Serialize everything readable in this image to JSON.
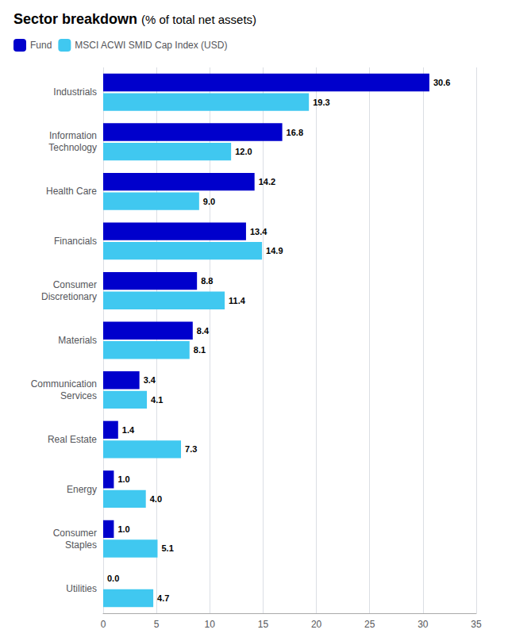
{
  "chart_data": {
    "type": "bar",
    "orientation": "horizontal",
    "title": "Sector breakdown",
    "subtitle": "(% of total net assets)",
    "categories": [
      "Industrials",
      "Information\nTechnology",
      "Health Care",
      "Financials",
      "Consumer\nDiscretionary",
      "Materials",
      "Communication\nServices",
      "Real Estate",
      "Energy",
      "Consumer\nStaples",
      "Utilities"
    ],
    "series": [
      {
        "name": "Fund",
        "color": "#0000CC",
        "values": [
          30.6,
          16.8,
          14.2,
          13.4,
          8.8,
          8.4,
          3.4,
          1.4,
          1.0,
          1.0,
          0.0
        ],
        "value_labels": [
          "30.6",
          "16.8",
          "14.2",
          "13.4",
          "8.8",
          "8.4",
          "3.4",
          "1.4",
          "1.0",
          "1.0",
          "0.0"
        ]
      },
      {
        "name": "MSCI ACWI SMID Cap Index (USD)",
        "color": "#40C8F0",
        "values": [
          19.3,
          12.0,
          9.0,
          14.9,
          11.4,
          8.1,
          4.1,
          7.3,
          4.0,
          5.1,
          4.7
        ],
        "value_labels": [
          "19.3",
          "12.0",
          "9.0",
          "14.9",
          "11.4",
          "8.1",
          "4.1",
          "7.3",
          "4.0",
          "5.1",
          "4.7"
        ]
      }
    ],
    "xlim": [
      0,
      35
    ],
    "xticks": [
      0,
      5,
      10,
      15,
      20,
      25,
      30,
      35
    ],
    "grid": true,
    "legend": "upper left",
    "data_labels": true
  }
}
